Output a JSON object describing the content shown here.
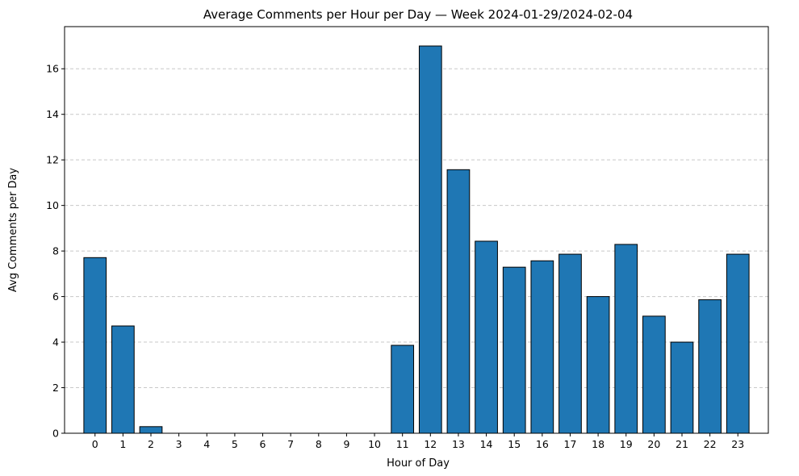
{
  "chart_data": {
    "type": "bar",
    "title": "Average Comments per Hour per Day — Week 2024-01-29/2024-02-04",
    "xlabel": "Hour of Day",
    "ylabel": "Avg Comments per Day",
    "categories": [
      "0",
      "1",
      "2",
      "3",
      "4",
      "5",
      "6",
      "7",
      "8",
      "9",
      "10",
      "11",
      "12",
      "13",
      "14",
      "15",
      "16",
      "17",
      "18",
      "19",
      "20",
      "21",
      "22",
      "23"
    ],
    "values": [
      7.71,
      4.71,
      0.29,
      0,
      0,
      0,
      0,
      0,
      0,
      0,
      0,
      3.86,
      17.0,
      11.57,
      8.43,
      7.29,
      7.57,
      7.86,
      6.0,
      8.29,
      5.14,
      4.0,
      5.86,
      7.86
    ],
    "ylim": [
      0,
      17.85
    ],
    "yticks": [
      0,
      2,
      4,
      6,
      8,
      10,
      12,
      14,
      16
    ],
    "grid": "y-dashed",
    "bar_color": "#1f77b4",
    "edge_color": "#000000",
    "grid_color": "#c8c8c8"
  }
}
